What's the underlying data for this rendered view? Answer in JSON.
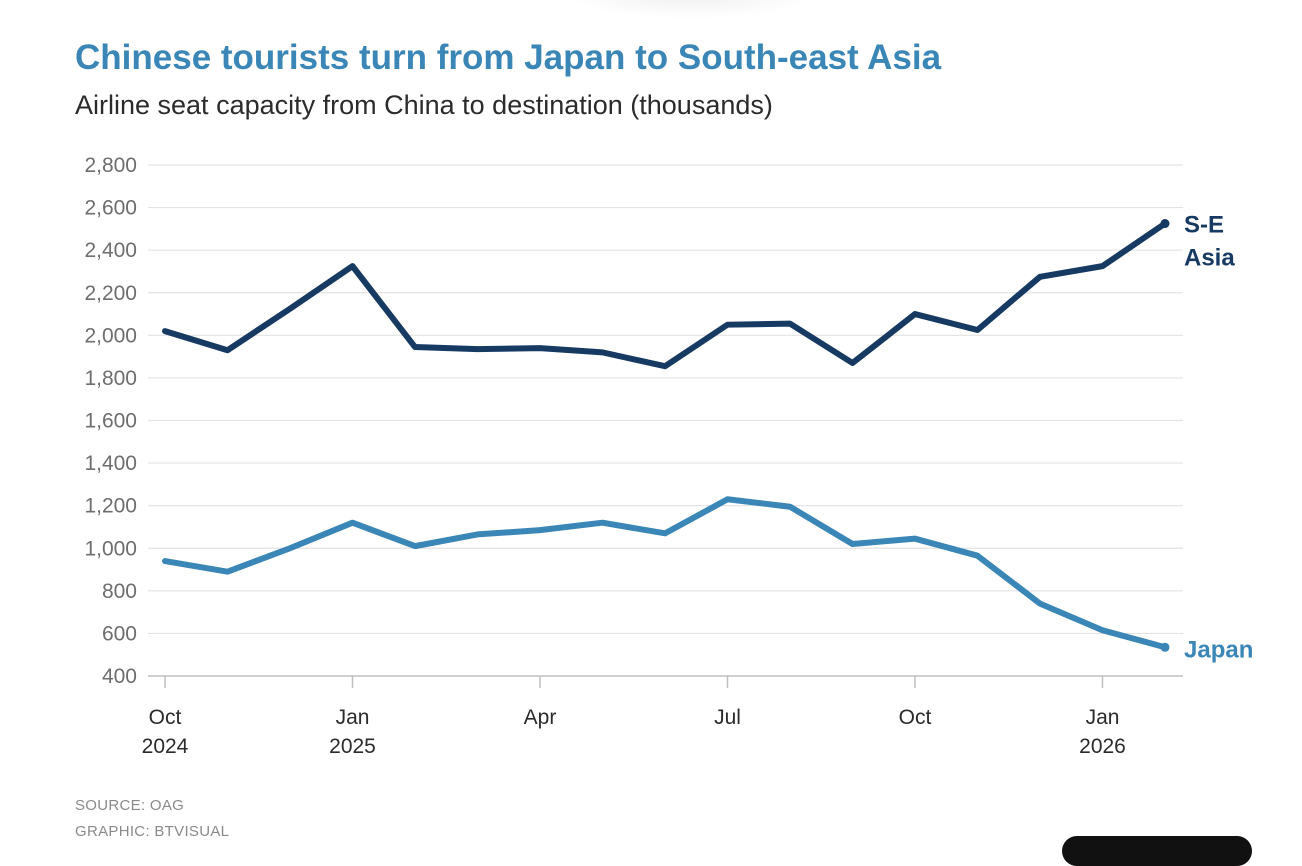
{
  "title": "Chinese tourists turn from Japan to South-east Asia",
  "subtitle": "Airline seat capacity from China to destination (thousands)",
  "source": "SOURCE: OAG",
  "graphic": "GRAPHIC: BTVISUAL",
  "colors": {
    "se_asia": "#173a63",
    "japan": "#3a86b6",
    "grid": "#e3e3e3",
    "axis": "#bfbfbf"
  },
  "chart_data": {
    "type": "line",
    "title": "Chinese tourists turn from Japan to South-east Asia",
    "subtitle": "Airline seat capacity from China to destination (thousands)",
    "xlabel": "",
    "ylabel": "",
    "ylim": [
      400,
      2800
    ],
    "yticks": [
      400,
      600,
      800,
      1000,
      1200,
      1400,
      1600,
      1800,
      2000,
      2200,
      2400,
      2600,
      2800
    ],
    "ytick_labels": [
      "400",
      "600",
      "800",
      "1,000",
      "1,200",
      "1,400",
      "1,600",
      "1,800",
      "2,000",
      "2,200",
      "2,400",
      "2,600",
      "2,800"
    ],
    "x": [
      "Oct 2024",
      "Nov 2024",
      "Dec 2024",
      "Jan 2025",
      "Feb 2025",
      "Mar 2025",
      "Apr 2025",
      "May 2025",
      "Jun 2025",
      "Jul 2025",
      "Aug 2025",
      "Sep 2025",
      "Oct 2025",
      "Nov 2025",
      "Dec 2025",
      "Jan 2026",
      "Feb 2026"
    ],
    "xticks": [
      {
        "index": 0,
        "month": "Oct",
        "year": "2024"
      },
      {
        "index": 3,
        "month": "Jan",
        "year": "2025"
      },
      {
        "index": 6,
        "month": "Apr",
        "year": ""
      },
      {
        "index": 9,
        "month": "Jul",
        "year": ""
      },
      {
        "index": 12,
        "month": "Oct",
        "year": ""
      },
      {
        "index": 15,
        "month": "Jan",
        "year": "2026"
      }
    ],
    "series": [
      {
        "name": "S-E Asia",
        "label_lines": [
          "S-E",
          "Asia"
        ],
        "values": [
          2020,
          1930,
          2125,
          2325,
          1945,
          1935,
          1940,
          1920,
          1855,
          2050,
          2055,
          1870,
          2100,
          2025,
          2275,
          2325,
          2525
        ]
      },
      {
        "name": "Japan",
        "label_lines": [
          "Japan"
        ],
        "values": [
          940,
          890,
          1000,
          1120,
          1010,
          1065,
          1085,
          1120,
          1070,
          1230,
          1195,
          1020,
          1045,
          965,
          740,
          615,
          535
        ]
      }
    ],
    "grid": true,
    "legend": "direct labels at right end of lines"
  }
}
